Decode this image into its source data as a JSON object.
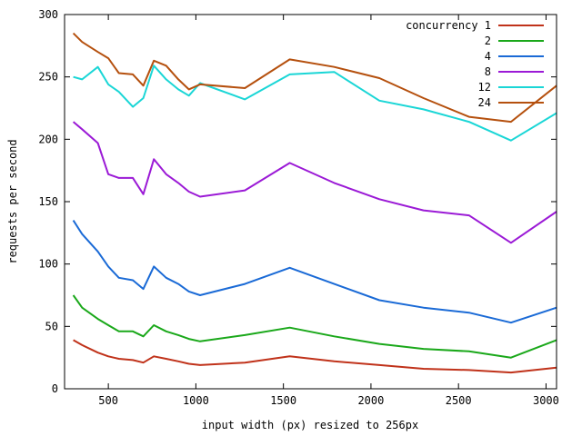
{
  "chart_data": {
    "type": "line",
    "title": "",
    "xlabel": "input width (px) resized to 256px",
    "ylabel": "requests per second",
    "xlim": [
      250,
      3060
    ],
    "ylim": [
      0,
      300
    ],
    "xticks": [
      500,
      1000,
      1500,
      2000,
      2500,
      3000
    ],
    "yticks": [
      0,
      50,
      100,
      150,
      200,
      250,
      300
    ],
    "grid": false,
    "legend_position": "top-right",
    "x": [
      300,
      350,
      440,
      500,
      560,
      640,
      700,
      760,
      830,
      900,
      960,
      1024,
      1280,
      1536,
      1790,
      2048,
      2300,
      2560,
      2800,
      3060
    ],
    "series": [
      {
        "name": "concurrency 1",
        "color": "#c0321a",
        "values": [
          39,
          35,
          29,
          26,
          24,
          23,
          21,
          26,
          24,
          22,
          20,
          19,
          21,
          26,
          22,
          19,
          16,
          15,
          13,
          17
        ]
      },
      {
        "name": "2",
        "color": "#1aa81a",
        "values": [
          75,
          65,
          56,
          51,
          46,
          46,
          42,
          51,
          46,
          43,
          40,
          38,
          43,
          49,
          42,
          36,
          32,
          30,
          25,
          39
        ]
      },
      {
        "name": "4",
        "color": "#1a6ad6",
        "values": [
          135,
          124,
          110,
          98,
          89,
          87,
          80,
          98,
          89,
          84,
          78,
          75,
          84,
          97,
          84,
          71,
          65,
          61,
          53,
          65
        ]
      },
      {
        "name": "8",
        "color": "#9b1ad6",
        "values": [
          214,
          208,
          197,
          172,
          169,
          169,
          156,
          184,
          172,
          165,
          158,
          154,
          159,
          181,
          165,
          152,
          143,
          139,
          117,
          142
        ]
      },
      {
        "name": "12",
        "color": "#1ad6d6",
        "values": [
          250,
          248,
          258,
          244,
          238,
          226,
          233,
          259,
          248,
          240,
          235,
          245,
          232,
          252,
          254,
          231,
          224,
          214,
          199,
          221
        ]
      },
      {
        "name": "24",
        "color": "#b5500e",
        "values": [
          285,
          278,
          270,
          265,
          253,
          252,
          243,
          263,
          259,
          248,
          240,
          244,
          241,
          264,
          258,
          249,
          233,
          218,
          214,
          243
        ]
      }
    ]
  }
}
